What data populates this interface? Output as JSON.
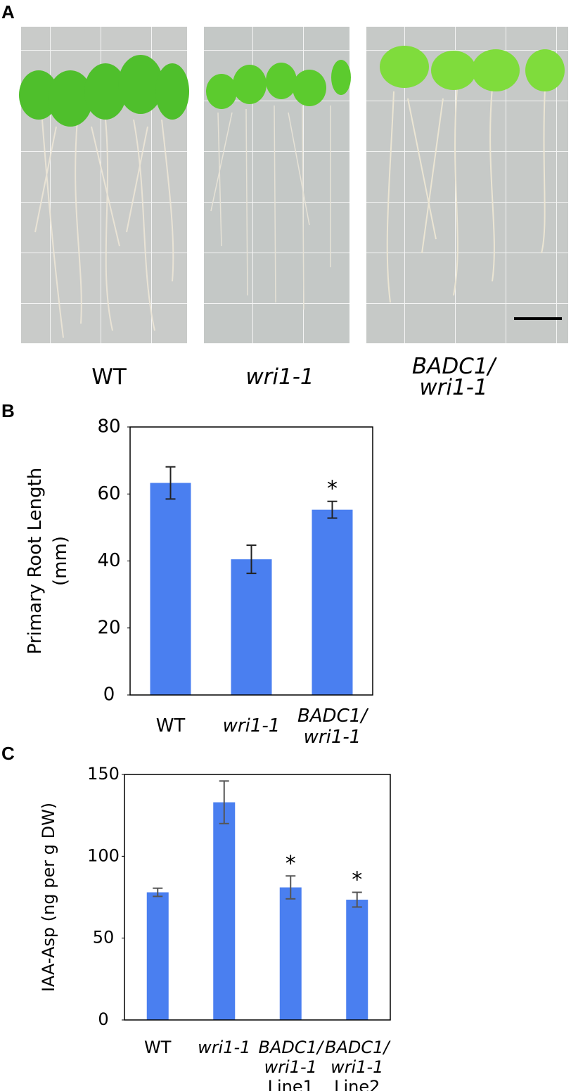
{
  "panel_a": {
    "label": "A",
    "captions": [
      "WT",
      "wri1-1",
      "BADC1/\nwri1-1"
    ]
  },
  "chart_data": [
    {
      "type": "bar",
      "panel_label": "B",
      "y_label": "Primary Root Length\n(mm)",
      "categories": [
        "WT",
        "wri1-1",
        "BADC1/\nwri1-1"
      ],
      "values": [
        63.3,
        40.5,
        55.3
      ],
      "errors": [
        4.8,
        4.2,
        2.5
      ],
      "significance": [
        null,
        null,
        "*"
      ],
      "color": "#4a7ff0",
      "ylim": [
        0,
        80
      ],
      "yticks": [
        0,
        20,
        40,
        60,
        80
      ]
    },
    {
      "type": "bar",
      "panel_label": "C",
      "y_label": "IAA-Asp (ng per g DW)",
      "categories": [
        "WT",
        "wri1-1",
        "BADC1/\nwri1-1\nLine1",
        "BADC1/\nwri1-1\nLine2"
      ],
      "values": [
        78,
        133,
        81,
        73.5
      ],
      "errors": [
        2.5,
        13,
        7,
        4.5
      ],
      "significance": [
        null,
        null,
        "*",
        "*"
      ],
      "color": "#4a7ff0",
      "ylim": [
        0,
        150
      ],
      "yticks": [
        0,
        50,
        100,
        150
      ]
    }
  ]
}
